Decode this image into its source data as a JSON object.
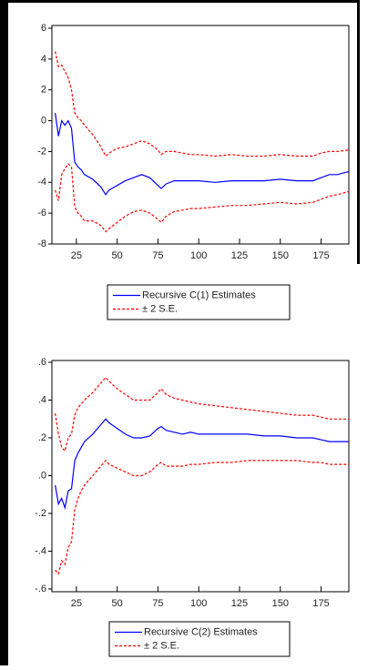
{
  "chart_data": [
    {
      "type": "line",
      "x": [
        12,
        14,
        16,
        18,
        20,
        22,
        24,
        26,
        28,
        30,
        35,
        40,
        43,
        45,
        50,
        55,
        60,
        65,
        70,
        75,
        77,
        80,
        85,
        90,
        95,
        100,
        110,
        120,
        130,
        140,
        150,
        160,
        170,
        175,
        180,
        185,
        192
      ],
      "xlim": [
        10,
        192
      ],
      "xticks": [
        25,
        50,
        75,
        100,
        125,
        150,
        175
      ],
      "ylim": [
        -8,
        6
      ],
      "yticks": [
        -8,
        -6,
        -4,
        -2,
        0,
        2,
        4,
        6
      ],
      "series": [
        {
          "name": "Recursive C(1) Estimates",
          "color": "#0000ff",
          "dashed": false,
          "values": [
            0.5,
            -1,
            0,
            -0.3,
            0,
            -0.5,
            -2.7,
            -3,
            -3.2,
            -3.5,
            -3.8,
            -4.3,
            -4.8,
            -4.5,
            -4.2,
            -3.9,
            -3.7,
            -3.5,
            -3.7,
            -4.2,
            -4.4,
            -4.1,
            -3.9,
            -3.9,
            -3.9,
            -3.9,
            -4,
            -3.9,
            -3.9,
            -3.9,
            -3.8,
            -3.9,
            -3.9,
            -3.7,
            -3.5,
            -3.5,
            -3.3
          ]
        },
        {
          "name": "± 2 S.E.",
          "color": "#ff0000",
          "dashed": true,
          "values": [
            4.5,
            3.5,
            3.6,
            3.2,
            2.8,
            2,
            0.5,
            0.2,
            0,
            -0.3,
            -0.9,
            -1.7,
            -2.3,
            -2.1,
            -1.8,
            -1.7,
            -1.5,
            -1.3,
            -1.5,
            -1.9,
            -2.2,
            -2,
            -2,
            -2.1,
            -2.2,
            -2.2,
            -2.3,
            -2.2,
            -2.3,
            -2.3,
            -2.2,
            -2.3,
            -2.3,
            -2.1,
            -2,
            -2,
            -1.9
          ]
        },
        {
          "color": "#ff0000",
          "dashed": true,
          "values": [
            -4.5,
            -5.2,
            -3.5,
            -3.1,
            -2.8,
            -3,
            -5.6,
            -6,
            -6.2,
            -6.5,
            -6.5,
            -6.8,
            -7.2,
            -7,
            -6.6,
            -6.2,
            -5.9,
            -5.8,
            -6,
            -6.4,
            -6.6,
            -6.2,
            -5.9,
            -5.8,
            -5.7,
            -5.7,
            -5.6,
            -5.5,
            -5.5,
            -5.4,
            -5.3,
            -5.4,
            -5.3,
            -5.1,
            -4.9,
            -4.8,
            -4.6
          ]
        }
      ]
    },
    {
      "type": "line",
      "x": [
        12,
        14,
        16,
        18,
        20,
        22,
        24,
        26,
        28,
        30,
        35,
        40,
        43,
        45,
        50,
        55,
        60,
        65,
        70,
        75,
        77,
        80,
        85,
        90,
        95,
        100,
        110,
        120,
        130,
        140,
        150,
        160,
        170,
        175,
        180,
        185,
        192
      ],
      "xlim": [
        10,
        192
      ],
      "xticks": [
        25,
        50,
        75,
        100,
        125,
        150,
        175
      ],
      "ylim": [
        -0.6,
        0.6
      ],
      "yticks": [
        {
          "value": -0.6,
          "label": "-.6"
        },
        {
          "value": -0.4,
          "label": "-.4"
        },
        {
          "value": -0.2,
          "label": "-.2"
        },
        {
          "value": 0,
          "label": ".0"
        },
        {
          "value": 0.2,
          "label": ".2"
        },
        {
          "value": 0.4,
          "label": ".4"
        },
        {
          "value": 0.6,
          "label": ".6"
        }
      ],
      "series": [
        {
          "name": "Recursive C(2) Estimates",
          "color": "#0000ff",
          "dashed": false,
          "values": [
            -0.05,
            -0.15,
            -0.12,
            -0.17,
            -0.08,
            -0.07,
            0.08,
            0.12,
            0.15,
            0.18,
            0.22,
            0.27,
            0.3,
            0.28,
            0.25,
            0.22,
            0.2,
            0.2,
            0.21,
            0.25,
            0.26,
            0.24,
            0.23,
            0.22,
            0.23,
            0.22,
            0.22,
            0.22,
            0.22,
            0.21,
            0.21,
            0.2,
            0.2,
            0.19,
            0.18,
            0.18,
            0.18
          ]
        },
        {
          "name": "± 2 S.E.",
          "color": "#ff0000",
          "dashed": true,
          "values": [
            0.33,
            0.22,
            0.15,
            0.13,
            0.2,
            0.22,
            0.32,
            0.36,
            0.38,
            0.4,
            0.44,
            0.49,
            0.52,
            0.5,
            0.46,
            0.43,
            0.4,
            0.4,
            0.4,
            0.44,
            0.46,
            0.43,
            0.41,
            0.4,
            0.39,
            0.38,
            0.37,
            0.36,
            0.35,
            0.34,
            0.33,
            0.32,
            0.32,
            0.31,
            0.3,
            0.3,
            0.3
          ]
        },
        {
          "color": "#ff0000",
          "dashed": true,
          "values": [
            -0.5,
            -0.52,
            -0.45,
            -0.47,
            -0.38,
            -0.35,
            -0.18,
            -0.12,
            -0.08,
            -0.05,
            0,
            0.05,
            0.08,
            0.06,
            0.04,
            0.02,
            0,
            0,
            0.02,
            0.06,
            0.07,
            0.05,
            0.05,
            0.05,
            0.06,
            0.06,
            0.07,
            0.07,
            0.08,
            0.08,
            0.08,
            0.08,
            0.07,
            0.07,
            0.06,
            0.06,
            0.06
          ]
        }
      ]
    }
  ]
}
